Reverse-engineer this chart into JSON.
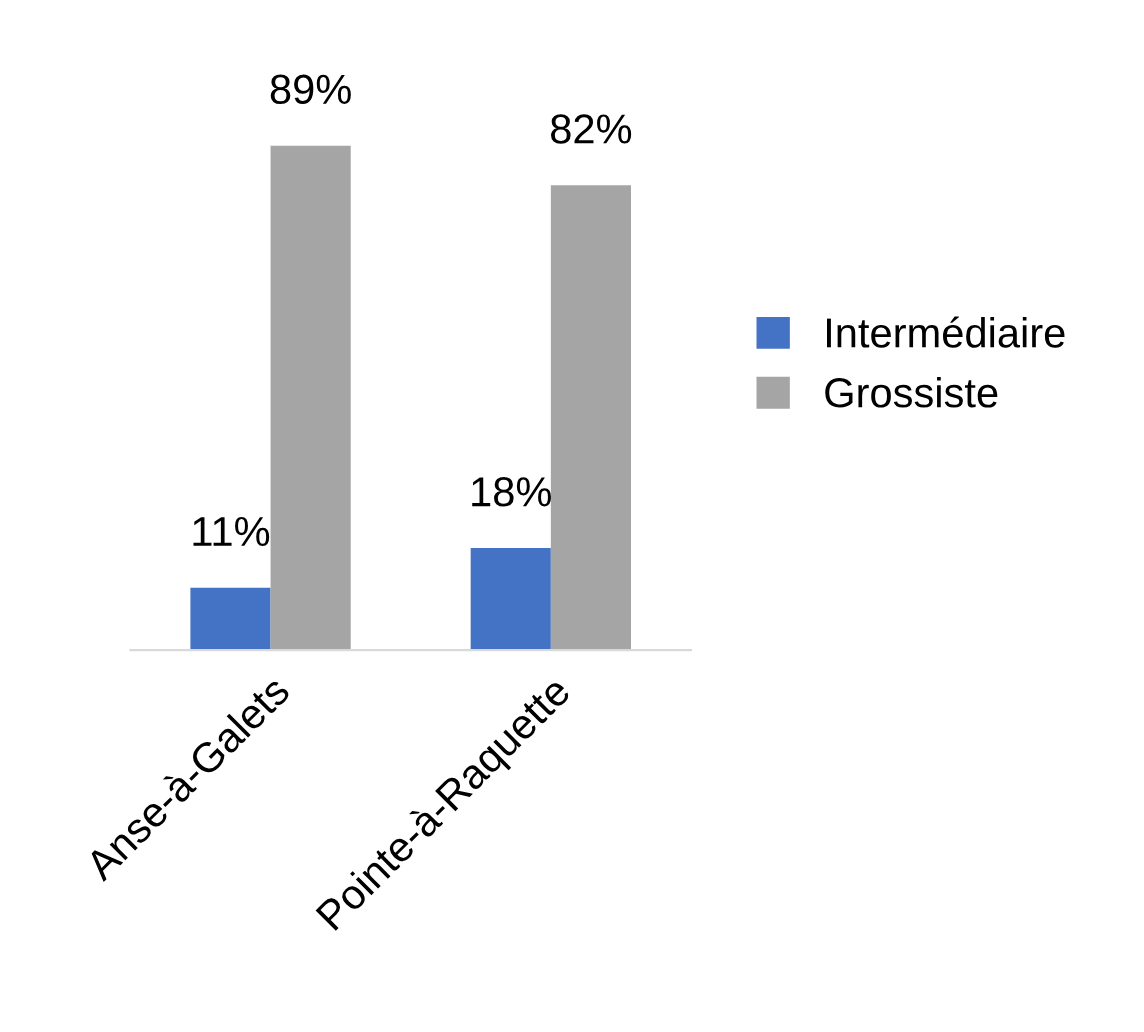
{
  "chart_data": {
    "type": "bar",
    "categories": [
      "Anse-à-Galets",
      "Pointe-à-Raquette"
    ],
    "series": [
      {
        "name": "Intermédiaire",
        "color": "#4472c4",
        "values": [
          11,
          18
        ],
        "value_labels": [
          "11%",
          "18%"
        ]
      },
      {
        "name": "Grossiste",
        "color": "#a5a5a5",
        "values": [
          89,
          82
        ],
        "value_labels": [
          "89%",
          "82%"
        ]
      }
    ],
    "legend": "right",
    "grid": false
  }
}
